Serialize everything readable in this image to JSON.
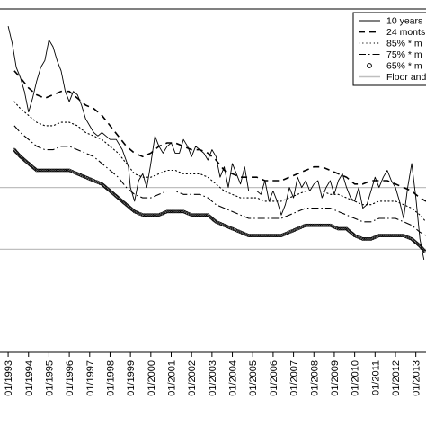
{
  "chart_data": {
    "type": "line",
    "title": "",
    "xlabel": "",
    "ylabel": "",
    "x_tick_labels": [
      "01/1993",
      "01/1994",
      "01/1995",
      "01/1996",
      "01/1997",
      "01/1998",
      "01/1999",
      "01/2000",
      "01/2001",
      "01/2002",
      "01/2003",
      "01/2004",
      "01/2005",
      "01/2006",
      "01/2007",
      "01/2008",
      "01/2009",
      "01/2010",
      "01/2011",
      "01/2012",
      "01/2013"
    ],
    "xlim": [
      1992.6,
      2013.5
    ],
    "ylim": [
      0,
      100
    ],
    "grid": false,
    "legend_position": "top-right",
    "legend": [
      {
        "label": "10 years",
        "style": "solid"
      },
      {
        "label": "24 monts",
        "style": "dashed"
      },
      {
        "label": "85% * m",
        "style": "dotted"
      },
      {
        "label": "75% * m",
        "style": "dashdot"
      },
      {
        "label": "65% * m",
        "style": "circles"
      },
      {
        "label": "Floor and",
        "style": "solid-gray"
      }
    ],
    "series": [
      {
        "style": "solid",
        "x": [
          1993.0,
          1993.2,
          1993.4,
          1993.6,
          1993.8,
          1994.0,
          1994.2,
          1994.4,
          1994.6,
          1994.8,
          1995.0,
          1995.2,
          1995.4,
          1995.6,
          1995.8,
          1996.0,
          1996.2,
          1996.4,
          1996.6,
          1996.8,
          1997.0,
          1997.2,
          1997.4,
          1997.6,
          1997.8,
          1998.0,
          1998.3,
          1998.6,
          1998.9,
          1999.0,
          1999.2,
          1999.4,
          1999.6,
          1999.8,
          2000.0,
          2000.2,
          2000.4,
          2000.6,
          2000.8,
          2001.0,
          2001.2,
          2001.4,
          2001.6,
          2001.8,
          2002.0,
          2002.2,
          2002.4,
          2002.6,
          2002.8,
          2003.0,
          2003.2,
          2003.4,
          2003.6,
          2003.8,
          2004.0,
          2004.2,
          2004.4,
          2004.6,
          2004.8,
          2005.0,
          2005.2,
          2005.4,
          2005.6,
          2005.8,
          2006.0,
          2006.2,
          2006.4,
          2006.6,
          2006.8,
          2007.0,
          2007.2,
          2007.4,
          2007.6,
          2007.8,
          2008.0,
          2008.2,
          2008.4,
          2008.6,
          2008.8,
          2009.0,
          2009.2,
          2009.4,
          2009.6,
          2009.8,
          2010.0,
          2010.2,
          2010.4,
          2010.6,
          2010.8,
          2011.0,
          2011.2,
          2011.4,
          2011.6,
          2011.8,
          2012.0,
          2012.2,
          2012.4,
          2012.6,
          2012.8,
          2013.0,
          2013.2,
          2013.4
        ],
        "values": [
          95,
          90,
          83,
          80,
          76,
          70,
          74,
          79,
          83,
          85,
          91,
          89,
          85,
          82,
          76,
          73,
          76,
          75,
          72,
          68,
          66,
          64,
          63,
          64,
          63,
          62,
          62,
          59,
          54,
          48,
          44,
          50,
          52,
          48,
          55,
          63,
          60,
          58,
          60,
          61,
          58,
          58,
          62,
          60,
          57,
          60,
          59,
          58,
          56,
          59,
          57,
          51,
          54,
          48,
          55,
          52,
          49,
          54,
          47,
          47,
          47,
          46,
          50,
          44,
          47,
          44,
          40,
          43,
          48,
          45,
          51,
          48,
          50,
          47,
          49,
          50,
          45,
          48,
          50,
          46,
          50,
          52,
          48,
          45,
          44,
          48,
          42,
          43,
          47,
          51,
          48,
          51,
          53,
          50,
          48,
          44,
          39,
          48,
          55,
          45,
          33,
          27
        ]
      },
      {
        "style": "dashed",
        "x": [
          1993.3,
          1993.6,
          1994.0,
          1994.4,
          1994.8,
          1995.2,
          1995.6,
          1996.0,
          1996.4,
          1996.8,
          1997.2,
          1997.6,
          1998.0,
          1998.4,
          1998.8,
          1999.2,
          1999.6,
          2000.0,
          2000.4,
          2000.8,
          2001.2,
          2001.6,
          2002.0,
          2002.4,
          2002.8,
          2003.2,
          2003.6,
          2004.0,
          2004.4,
          2004.8,
          2005.2,
          2005.6,
          2006.0,
          2006.4,
          2006.8,
          2007.2,
          2007.6,
          2008.0,
          2008.4,
          2008.8,
          2009.2,
          2009.6,
          2010.0,
          2010.4,
          2010.8,
          2011.2,
          2011.6,
          2012.0,
          2012.4,
          2012.8,
          2013.2,
          2013.5
        ],
        "values": [
          82,
          80,
          77,
          75,
          74,
          75,
          76,
          76,
          74,
          72,
          71,
          69,
          66,
          63,
          60,
          58,
          57,
          58,
          60,
          61,
          61,
          60,
          59,
          59,
          58,
          56,
          53,
          52,
          51,
          51,
          51,
          50,
          50,
          50,
          51,
          52,
          53,
          54,
          54,
          53,
          52,
          51,
          49,
          49,
          50,
          50,
          50,
          49,
          48,
          47,
          45,
          44
        ]
      },
      {
        "style": "dotted",
        "x": [
          1993.3,
          1993.6,
          1994.0,
          1994.4,
          1994.8,
          1995.2,
          1995.6,
          1996.0,
          1996.4,
          1996.8,
          1997.2,
          1997.6,
          1998.0,
          1998.4,
          1998.8,
          1999.2,
          1999.6,
          2000.0,
          2000.4,
          2000.8,
          2001.2,
          2001.6,
          2002.0,
          2002.4,
          2002.8,
          2003.2,
          2003.6,
          2004.0,
          2004.4,
          2004.8,
          2005.2,
          2005.6,
          2006.0,
          2006.4,
          2006.8,
          2007.2,
          2007.6,
          2008.0,
          2008.4,
          2008.8,
          2009.2,
          2009.6,
          2010.0,
          2010.4,
          2010.8,
          2011.2,
          2011.6,
          2012.0,
          2012.4,
          2012.8,
          2013.2,
          2013.5
        ],
        "values": [
          73,
          71,
          69,
          67,
          66,
          66,
          67,
          67,
          66,
          64,
          63,
          62,
          60,
          58,
          55,
          52,
          51,
          51,
          52,
          53,
          53,
          52,
          52,
          52,
          51,
          49,
          47,
          46,
          45,
          45,
          45,
          44,
          44,
          44,
          45,
          46,
          47,
          47,
          47,
          46,
          46,
          45,
          44,
          43,
          43,
          44,
          44,
          44,
          43,
          42,
          40,
          38
        ]
      },
      {
        "style": "dashdot",
        "x": [
          1993.3,
          1993.6,
          1994.0,
          1994.4,
          1994.8,
          1995.2,
          1995.6,
          1996.0,
          1996.4,
          1996.8,
          1997.2,
          1997.6,
          1998.0,
          1998.4,
          1998.8,
          1999.2,
          1999.6,
          2000.0,
          2000.4,
          2000.8,
          2001.2,
          2001.6,
          2002.0,
          2002.4,
          2002.8,
          2003.2,
          2003.6,
          2004.0,
          2004.4,
          2004.8,
          2005.2,
          2005.6,
          2006.0,
          2006.4,
          2006.8,
          2007.2,
          2007.6,
          2008.0,
          2008.4,
          2008.8,
          2009.2,
          2009.6,
          2010.0,
          2010.4,
          2010.8,
          2011.2,
          2011.6,
          2012.0,
          2012.4,
          2012.8,
          2013.2,
          2013.5
        ],
        "values": [
          66,
          64,
          62,
          60,
          59,
          59,
          60,
          60,
          59,
          58,
          57,
          55,
          53,
          51,
          48,
          46,
          45,
          45,
          46,
          47,
          47,
          46,
          46,
          46,
          45,
          43,
          42,
          41,
          40,
          39,
          39,
          39,
          39,
          39,
          40,
          41,
          42,
          42,
          42,
          42,
          41,
          40,
          39,
          38,
          38,
          39,
          39,
          39,
          38,
          37,
          35,
          34
        ]
      },
      {
        "style": "circles",
        "x": [
          1993.3,
          1993.6,
          1994.0,
          1994.4,
          1994.8,
          1995.2,
          1995.6,
          1996.0,
          1996.4,
          1996.8,
          1997.2,
          1997.6,
          1998.0,
          1998.4,
          1998.8,
          1999.2,
          1999.6,
          2000.0,
          2000.4,
          2000.8,
          2001.2,
          2001.6,
          2002.0,
          2002.4,
          2002.8,
          2003.2,
          2003.6,
          2004.0,
          2004.4,
          2004.8,
          2005.2,
          2005.6,
          2006.0,
          2006.4,
          2006.8,
          2007.2,
          2007.6,
          2008.0,
          2008.4,
          2008.8,
          2009.2,
          2009.6,
          2010.0,
          2010.4,
          2010.8,
          2011.2,
          2011.6,
          2012.0,
          2012.4,
          2012.8,
          2013.2,
          2013.5
        ],
        "values": [
          59,
          57,
          55,
          53,
          53,
          53,
          53,
          53,
          52,
          51,
          50,
          49,
          47,
          45,
          43,
          41,
          40,
          40,
          40,
          41,
          41,
          41,
          40,
          40,
          40,
          38,
          37,
          36,
          35,
          34,
          34,
          34,
          34,
          34,
          35,
          36,
          37,
          37,
          37,
          37,
          36,
          36,
          34,
          33,
          33,
          34,
          34,
          34,
          34,
          33,
          31,
          29
        ]
      }
    ],
    "reference_lines": [
      {
        "style": "solid-gray",
        "value": 48
      },
      {
        "style": "solid-gray",
        "value": 30
      }
    ]
  },
  "colors": {
    "series": "#000000",
    "reference": "#bfbfbf",
    "frame": "#000000",
    "background": "#ffffff"
  }
}
